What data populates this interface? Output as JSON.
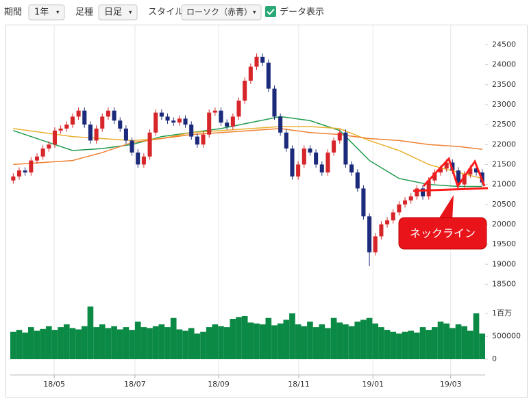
{
  "toolbar": {
    "period_label": "期間",
    "period": "1年",
    "bar_label": "足種",
    "bar": "日足",
    "style_label": "スタイル",
    "style": "ローソク（赤青）",
    "show_data": "データ表示"
  },
  "chart_data": {
    "type": "candlestick",
    "up_color": "#d7262a",
    "down_color": "#1b2a7a",
    "xlim": [
      -0.5,
      79.5
    ],
    "xticks": [
      {
        "value": 6.9,
        "label": "18/05"
      },
      {
        "value": 20.5,
        "label": "18/07"
      },
      {
        "value": 34.6,
        "label": "18/09"
      },
      {
        "value": 48.1,
        "label": "18/11"
      },
      {
        "value": 60.6,
        "label": "19/01"
      },
      {
        "value": 73.7,
        "label": "19/03"
      }
    ],
    "ylim": [
      18250,
      24850
    ],
    "yticks": [
      18500,
      19000,
      19500,
      20000,
      20500,
      21000,
      21500,
      22000,
      22500,
      23000,
      23500,
      24000,
      24500
    ],
    "open": [
      21100,
      21200,
      21350,
      21300,
      21600,
      21700,
      21900,
      22000,
      22350,
      22400,
      22500,
      22700,
      22850,
      22500,
      22100,
      22400,
      22700,
      22850,
      22600,
      22400,
      22100,
      21800,
      21500,
      21700,
      22300,
      22800,
      22700,
      22600,
      22550,
      22650,
      22500,
      22200,
      22000,
      22250,
      22800,
      22850,
      22550,
      22450,
      22700,
      23100,
      23600,
      23950,
      24200,
      24050,
      23400,
      22700,
      22300,
      21900,
      21200,
      21500,
      21900,
      21800,
      21500,
      21300,
      21800,
      22100,
      22300,
      21500,
      21300,
      20900,
      20200,
      19300,
      19700,
      20000,
      20100,
      20300,
      20500,
      20600,
      20700,
      20900,
      20700,
      21100,
      21300,
      21400,
      21550,
      21350,
      21000,
      21250,
      21400,
      21300
    ],
    "high": [
      21280,
      21430,
      21430,
      21680,
      21780,
      21980,
      22080,
      22430,
      22480,
      22580,
      22780,
      22930,
      22930,
      22580,
      22480,
      22780,
      22930,
      22930,
      22680,
      22480,
      22180,
      21880,
      21780,
      22380,
      22880,
      22880,
      22780,
      22680,
      22730,
      22730,
      22580,
      22280,
      22330,
      22880,
      22930,
      22930,
      22630,
      22780,
      23180,
      23680,
      24030,
      24280,
      24280,
      24130,
      23480,
      22780,
      22380,
      21980,
      21580,
      21980,
      21980,
      21880,
      21580,
      21880,
      22180,
      22380,
      22380,
      21580,
      21380,
      20980,
      20280,
      19780,
      20080,
      20180,
      20380,
      20580,
      20680,
      20780,
      20980,
      20980,
      21180,
      21380,
      21480,
      21630,
      21630,
      21430,
      21330,
      21480,
      21480,
      21380
    ],
    "low": [
      21020,
      21120,
      21220,
      21220,
      21520,
      21620,
      21820,
      21920,
      22270,
      22320,
      22420,
      22620,
      22420,
      22020,
      22020,
      22320,
      22620,
      22520,
      22320,
      22020,
      21720,
      21420,
      21420,
      21620,
      22220,
      22620,
      22520,
      22470,
      22470,
      22420,
      22120,
      21920,
      21920,
      22170,
      22720,
      22470,
      22370,
      22370,
      22620,
      23020,
      23520,
      23870,
      23970,
      23320,
      22620,
      22220,
      21820,
      21120,
      21120,
      21420,
      21720,
      21420,
      21220,
      21220,
      21720,
      22020,
      21420,
      21220,
      20820,
      20120,
      18950,
      19220,
      19620,
      19920,
      20020,
      20220,
      20420,
      20520,
      20620,
      20620,
      20620,
      21020,
      21220,
      21320,
      21270,
      20920,
      20920,
      21170,
      21220,
      20970
    ],
    "close": [
      21200,
      21350,
      21300,
      21600,
      21700,
      21900,
      22000,
      22350,
      22400,
      22500,
      22700,
      22850,
      22500,
      22100,
      22400,
      22700,
      22850,
      22600,
      22400,
      22100,
      21800,
      21500,
      21700,
      22300,
      22800,
      22700,
      22600,
      22550,
      22650,
      22500,
      22200,
      22000,
      22250,
      22800,
      22850,
      22550,
      22450,
      22700,
      23100,
      23600,
      23950,
      24200,
      24050,
      23400,
      22700,
      22300,
      21900,
      21200,
      21500,
      21900,
      21800,
      21500,
      21300,
      21800,
      22100,
      22300,
      21500,
      21300,
      20900,
      20200,
      19300,
      19700,
      20000,
      20100,
      20300,
      20500,
      20600,
      20700,
      20900,
      20700,
      21100,
      21300,
      21400,
      21550,
      21350,
      21000,
      21250,
      21400,
      21300,
      21050
    ],
    "ma": [
      {
        "color": "#1f9a4c",
        "x": [
          0,
          5,
          10,
          15,
          20,
          25,
          30,
          35,
          40,
          45,
          50,
          55,
          60,
          65,
          70,
          75,
          79
        ],
        "values": [
          22350,
          22100,
          21850,
          21900,
          22000,
          22200,
          22300,
          22400,
          22550,
          22700,
          22600,
          22350,
          21600,
          21150,
          21000,
          20950,
          20950
        ]
      },
      {
        "color": "#e8b030",
        "x": [
          0,
          5,
          10,
          15,
          20,
          25,
          30,
          35,
          40,
          45,
          50,
          55,
          60,
          65,
          70,
          75,
          79
        ],
        "values": [
          22400,
          22300,
          22200,
          22150,
          22100,
          22150,
          22300,
          22350,
          22400,
          22450,
          22450,
          22400,
          22100,
          21850,
          21500,
          21300,
          21150
        ]
      },
      {
        "color": "#f08030",
        "x": [
          0,
          5,
          10,
          15,
          20,
          25,
          30,
          35,
          40,
          45,
          50,
          55,
          60,
          65,
          70,
          75,
          79
        ],
        "values": [
          21500,
          21550,
          21600,
          21800,
          22050,
          22150,
          22250,
          22300,
          22350,
          22400,
          22300,
          22250,
          22150,
          22100,
          22000,
          21950,
          21880
        ]
      }
    ],
    "volume": {
      "color": "#0a8a44",
      "ylim": [
        0,
        1250000
      ],
      "yticks": [
        0,
        500000,
        {
          "value": 1000000,
          "label": "1百万"
        }
      ],
      "values": [
        600000,
        640000,
        580000,
        700000,
        620000,
        660000,
        720000,
        640000,
        700000,
        760000,
        680000,
        650000,
        720000,
        1150000,
        700000,
        760000,
        680000,
        720000,
        650000,
        700000,
        640000,
        820000,
        700000,
        680000,
        720000,
        760000,
        700000,
        900000,
        650000,
        620000,
        680000,
        560000,
        600000,
        700000,
        760000,
        720000,
        700000,
        880000,
        920000,
        940000,
        800000,
        780000,
        760000,
        900000,
        740000,
        780000,
        860000,
        1000000,
        760000,
        720000,
        820000,
        700000,
        760000,
        680000,
        900000,
        800000,
        760000,
        720000,
        820000,
        860000,
        900000,
        780000,
        700000,
        640000,
        600000,
        560000,
        600000,
        620000,
        580000,
        700000,
        640000,
        700000,
        820000,
        780000,
        680000,
        760000,
        720000,
        620000,
        1000000,
        560000
      ]
    },
    "annotation": "ネックライン"
  }
}
